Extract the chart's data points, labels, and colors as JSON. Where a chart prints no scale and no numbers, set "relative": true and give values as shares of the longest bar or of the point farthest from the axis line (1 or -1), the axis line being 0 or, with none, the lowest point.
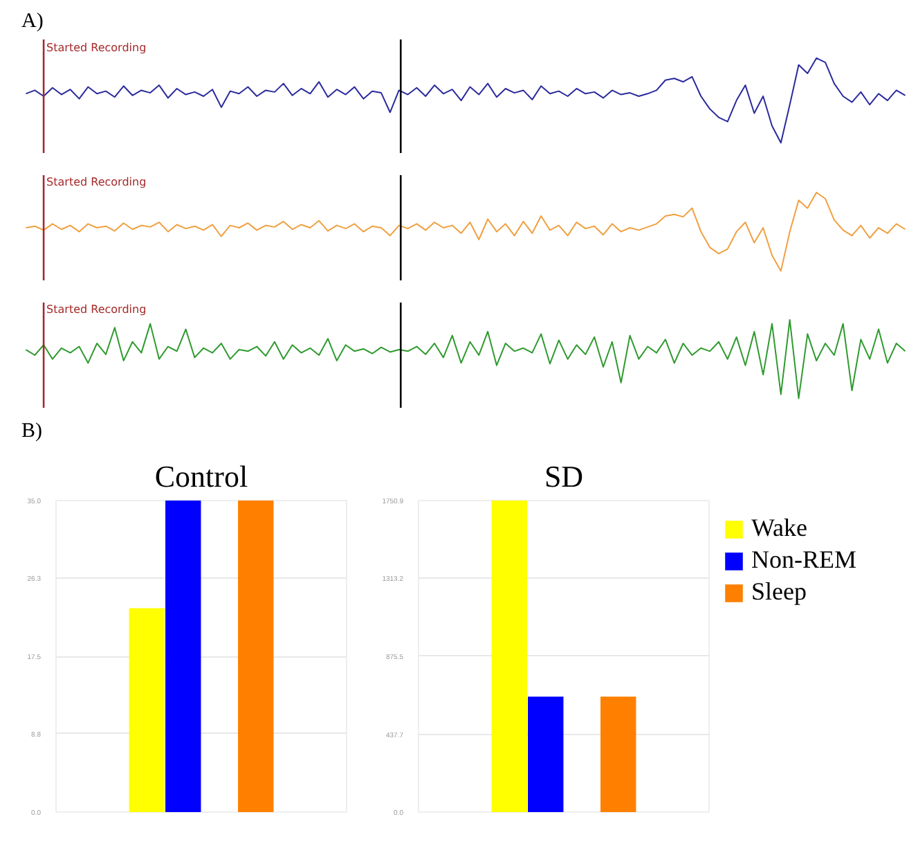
{
  "chart_data": [
    {
      "type": "line",
      "relative": true,
      "tick_labels": false,
      "title": "A)",
      "annotations": [
        "Started Recording"
      ],
      "categories": [
        null,
        null,
        null,
        null,
        null,
        null,
        null,
        null,
        null,
        null,
        null,
        null,
        null,
        null,
        null,
        null,
        null,
        null,
        null,
        null,
        null,
        null,
        null,
        null,
        null,
        null,
        null,
        null,
        null,
        null,
        null,
        null,
        null,
        null,
        null,
        null,
        null,
        null,
        null,
        null,
        null,
        null,
        null,
        null,
        null,
        null,
        null,
        null,
        null,
        null,
        null,
        null,
        null,
        null,
        null,
        null,
        null,
        null,
        null,
        null,
        null,
        null,
        null,
        null,
        null,
        null,
        null,
        null,
        null,
        null,
        null,
        null,
        null,
        null,
        null,
        null,
        null,
        null,
        null,
        null,
        null,
        null,
        null,
        null,
        null,
        null,
        null,
        null,
        null,
        null,
        null,
        null,
        null,
        null,
        null,
        null,
        null,
        null,
        null,
        null
      ],
      "series": [
        {
          "color": "#2a2a9e",
          "values": [
            0.58,
            0.62,
            0.55,
            0.65,
            0.57,
            0.63,
            0.52,
            0.66,
            0.58,
            0.61,
            0.54,
            0.67,
            0.56,
            0.62,
            0.59,
            0.68,
            0.53,
            0.64,
            0.57,
            0.6,
            0.55,
            0.63,
            0.42,
            0.61,
            0.58,
            0.66,
            0.55,
            0.62,
            0.6,
            0.7,
            0.56,
            0.64,
            0.58,
            0.72,
            0.54,
            0.63,
            0.57,
            0.66,
            0.52,
            0.61,
            0.59,
            0.36,
            0.62,
            0.57,
            0.65,
            0.55,
            0.68,
            0.58,
            0.63,
            0.5,
            0.66,
            0.57,
            0.7,
            0.54,
            0.64,
            0.59,
            0.62,
            0.51,
            0.67,
            0.58,
            0.61,
            0.55,
            0.64,
            0.58,
            0.6,
            0.53,
            0.62,
            0.57,
            0.59,
            0.55,
            0.58,
            0.62,
            0.74,
            0.76,
            0.72,
            0.78,
            0.55,
            0.4,
            0.3,
            0.25,
            0.5,
            0.68,
            0.35,
            0.55,
            0.2,
            0.0,
            0.45,
            0.92,
            0.82,
            1.0,
            0.95,
            0.7,
            0.55,
            0.48,
            0.6,
            0.45,
            0.58,
            0.5,
            0.62,
            0.56
          ]
        }
      ]
    },
    {
      "type": "line",
      "relative": true,
      "tick_labels": false,
      "categories": [
        null,
        null,
        null,
        null,
        null,
        null,
        null,
        null,
        null,
        null,
        null,
        null,
        null,
        null,
        null,
        null,
        null,
        null,
        null,
        null,
        null,
        null,
        null,
        null,
        null,
        null,
        null,
        null,
        null,
        null,
        null,
        null,
        null,
        null,
        null,
        null,
        null,
        null,
        null,
        null,
        null,
        null,
        null,
        null,
        null,
        null,
        null,
        null,
        null,
        null,
        null,
        null,
        null,
        null,
        null,
        null,
        null,
        null,
        null,
        null,
        null,
        null,
        null,
        null,
        null,
        null,
        null,
        null,
        null,
        null,
        null,
        null,
        null,
        null,
        null,
        null,
        null,
        null,
        null,
        null,
        null,
        null,
        null,
        null,
        null,
        null,
        null,
        null,
        null,
        null,
        null,
        null,
        null,
        null,
        null,
        null,
        null,
        null,
        null,
        null
      ],
      "annotations": [
        "Started Recording"
      ],
      "series": [
        {
          "color": "#f0a040",
          "values": [
            0.55,
            0.57,
            0.52,
            0.6,
            0.53,
            0.58,
            0.5,
            0.6,
            0.55,
            0.57,
            0.51,
            0.61,
            0.53,
            0.58,
            0.56,
            0.62,
            0.5,
            0.59,
            0.54,
            0.57,
            0.52,
            0.59,
            0.44,
            0.58,
            0.55,
            0.61,
            0.52,
            0.58,
            0.56,
            0.63,
            0.53,
            0.59,
            0.55,
            0.64,
            0.51,
            0.58,
            0.54,
            0.6,
            0.5,
            0.57,
            0.55,
            0.45,
            0.58,
            0.54,
            0.6,
            0.52,
            0.62,
            0.55,
            0.58,
            0.48,
            0.62,
            0.4,
            0.66,
            0.5,
            0.6,
            0.45,
            0.63,
            0.48,
            0.7,
            0.52,
            0.58,
            0.45,
            0.62,
            0.54,
            0.57,
            0.46,
            0.6,
            0.5,
            0.55,
            0.52,
            0.56,
            0.6,
            0.7,
            0.72,
            0.69,
            0.8,
            0.5,
            0.3,
            0.22,
            0.28,
            0.5,
            0.62,
            0.36,
            0.55,
            0.2,
            0.0,
            0.5,
            0.9,
            0.8,
            1.0,
            0.92,
            0.65,
            0.52,
            0.45,
            0.58,
            0.42,
            0.55,
            0.48,
            0.6,
            0.53
          ]
        }
      ]
    },
    {
      "type": "line",
      "relative": true,
      "tick_labels": false,
      "categories": [
        null,
        null,
        null,
        null,
        null,
        null,
        null,
        null,
        null,
        null,
        null,
        null,
        null,
        null,
        null,
        null,
        null,
        null,
        null,
        null,
        null,
        null,
        null,
        null,
        null,
        null,
        null,
        null,
        null,
        null,
        null,
        null,
        null,
        null,
        null,
        null,
        null,
        null,
        null,
        null,
        null,
        null,
        null,
        null,
        null,
        null,
        null,
        null,
        null,
        null,
        null,
        null,
        null,
        null,
        null,
        null,
        null,
        null,
        null,
        null,
        null,
        null,
        null,
        null,
        null,
        null,
        null,
        null,
        null,
        null,
        null,
        null,
        null,
        null,
        null,
        null,
        null,
        null,
        null,
        null,
        null,
        null,
        null,
        null,
        null,
        null,
        null,
        null,
        null,
        null,
        null,
        null,
        null,
        null,
        null,
        null,
        null,
        null,
        null,
        null
      ],
      "annotations": [
        "Started Recording"
      ],
      "series": [
        {
          "color": "#2e9a2e",
          "values": [
            0.62,
            0.55,
            0.68,
            0.5,
            0.64,
            0.58,
            0.66,
            0.45,
            0.7,
            0.56,
            0.9,
            0.48,
            0.72,
            0.58,
            0.95,
            0.5,
            0.66,
            0.6,
            0.88,
            0.52,
            0.64,
            0.58,
            0.7,
            0.5,
            0.62,
            0.6,
            0.66,
            0.54,
            0.72,
            0.5,
            0.68,
            0.58,
            0.64,
            0.55,
            0.76,
            0.48,
            0.68,
            0.6,
            0.63,
            0.57,
            0.65,
            0.59,
            0.62,
            0.6,
            0.66,
            0.56,
            0.7,
            0.52,
            0.8,
            0.45,
            0.72,
            0.55,
            0.85,
            0.42,
            0.7,
            0.6,
            0.64,
            0.58,
            0.82,
            0.44,
            0.74,
            0.5,
            0.68,
            0.56,
            0.78,
            0.4,
            0.72,
            0.2,
            0.8,
            0.5,
            0.66,
            0.58,
            0.75,
            0.45,
            0.7,
            0.55,
            0.64,
            0.6,
            0.72,
            0.5,
            0.78,
            0.42,
            0.85,
            0.3,
            0.95,
            0.05,
            1.0,
            0.0,
            0.82,
            0.48,
            0.7,
            0.55,
            0.95,
            0.1,
            0.75,
            0.5,
            0.88,
            0.45,
            0.7,
            0.6
          ]
        }
      ]
    },
    {
      "type": "bar",
      "title": "Control",
      "annotations": [
        "B)"
      ],
      "categories": [
        null,
        null,
        null,
        null,
        null,
        null,
        null,
        null
      ],
      "ylim": [
        0,
        35
      ],
      "yticks": [
        {
          "value": 0,
          "label": "0.0"
        },
        {
          "value": 8.8,
          "label": "8.8"
        },
        {
          "value": 17.5,
          "label": "17.5"
        },
        {
          "value": 26.3,
          "label": "26.3"
        },
        {
          "value": 35,
          "label": "35.0"
        }
      ],
      "grid": "y",
      "tick_labels": "y",
      "series": [
        {
          "color": "#ffff00",
          "values": [
            null,
            null,
            22.9,
            null,
            null,
            null,
            null,
            null
          ]
        },
        {
          "color": "#0000ff",
          "values": [
            null,
            null,
            null,
            35,
            null,
            null,
            null,
            null
          ]
        },
        {
          "color": "#ff8000",
          "values": [
            null,
            null,
            null,
            null,
            null,
            35,
            null,
            null
          ]
        }
      ]
    },
    {
      "type": "bar",
      "title": "SD",
      "categories": [
        null,
        null,
        null,
        null,
        null,
        null,
        null,
        null
      ],
      "ylim": [
        0,
        1750.9
      ],
      "yticks": [
        {
          "value": 0,
          "label": "0.0"
        },
        {
          "value": 437.7,
          "label": "437.7"
        },
        {
          "value": 875.5,
          "label": "875.5"
        },
        {
          "value": 1313.2,
          "label": "1313.2"
        },
        {
          "value": 1750.9,
          "label": "1750.9"
        }
      ],
      "grid": "y",
      "tick_labels": "y",
      "legend": "right",
      "series": [
        {
          "name": "Wake",
          "color": "#ffff00",
          "values": [
            null,
            null,
            1750.9,
            null,
            null,
            null,
            null,
            null
          ]
        },
        {
          "name": "Non-REM",
          "color": "#0000ff",
          "values": [
            null,
            null,
            null,
            649,
            null,
            null,
            null,
            null
          ]
        },
        {
          "name": "Sleep",
          "color": "#ff8000",
          "values": [
            null,
            null,
            null,
            null,
            null,
            649,
            null,
            null
          ]
        }
      ]
    }
  ]
}
